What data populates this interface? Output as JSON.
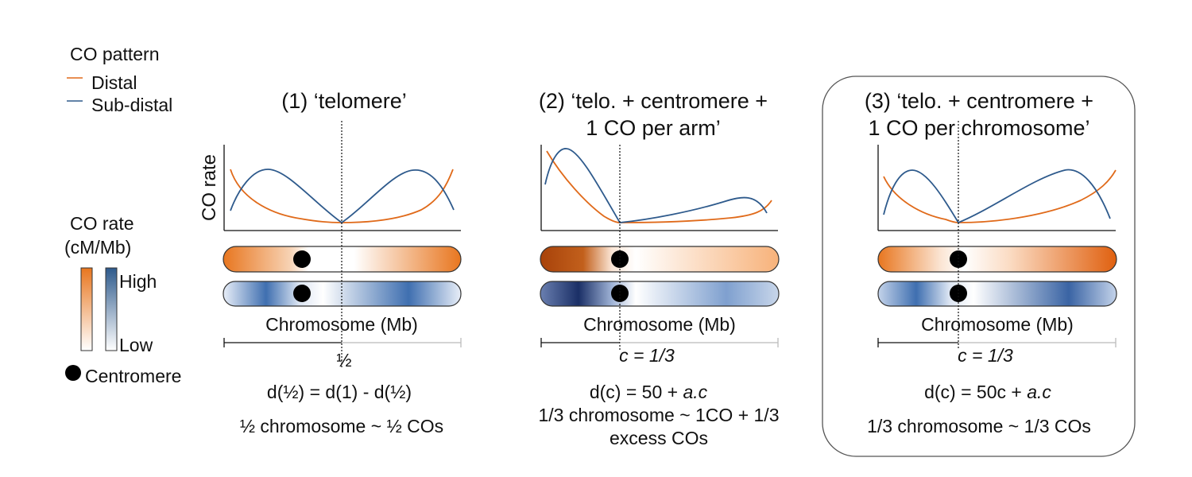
{
  "colors": {
    "distal": "#e06a1a",
    "subdistal": "#2e5a8c",
    "orange_dark": "#b84a0c",
    "orange_mid": "#e8761f",
    "blue_dark": "#1f3f78",
    "blue_mid": "#3f6fb0",
    "centromere": "#000000",
    "axis": "#111111"
  },
  "legend": {
    "pattern_title": "CO pattern",
    "distal_label": "Distal",
    "subdistal_label": "Sub-distal",
    "rate_title_line1": "CO rate",
    "rate_title_line2": "(cM/Mb)",
    "high_label": "High",
    "low_label": "Low",
    "centromere_label": "Centromere"
  },
  "panels": [
    {
      "title_line1": "(1) ‘telomere’",
      "title_line2": "",
      "y_axis_label": "CO rate",
      "x_axis_label": "Chromosome (Mb)",
      "split_label": "½",
      "split_italic": false,
      "formula_prefix": "d(½) = d(1) - d(½)",
      "formula_italic": "",
      "desc_line1": "½ chromosome ~ ½ COs",
      "desc_line2": "",
      "centromere_position": 0.333,
      "highlighted": false
    },
    {
      "title_line1": "(2) ‘telo. + centromere +",
      "title_line2": "1 CO per arm’",
      "y_axis_label": "",
      "x_axis_label": "Chromosome (Mb)",
      "split_label": "c = 1/3",
      "split_italic": true,
      "formula_prefix": "d(c) = 50 + ",
      "formula_italic": "a.c",
      "desc_line1": "1/3 chromosome ~ 1CO + 1/3",
      "desc_line2": "excess COs",
      "centromere_position": 0.333,
      "highlighted": false
    },
    {
      "title_line1": "(3) ‘telo. + centromere +",
      "title_line2": "1 CO per chromosome’",
      "y_axis_label": "",
      "x_axis_label": "Chromosome (Mb)",
      "split_label": "c = 1/3",
      "split_italic": true,
      "formula_prefix": "d(c) = 50c + ",
      "formula_italic": "a.c",
      "desc_line1": "1/3 chromosome ~ 1/3 COs",
      "desc_line2": "",
      "centromere_position": 0.333,
      "highlighted": true
    }
  ]
}
